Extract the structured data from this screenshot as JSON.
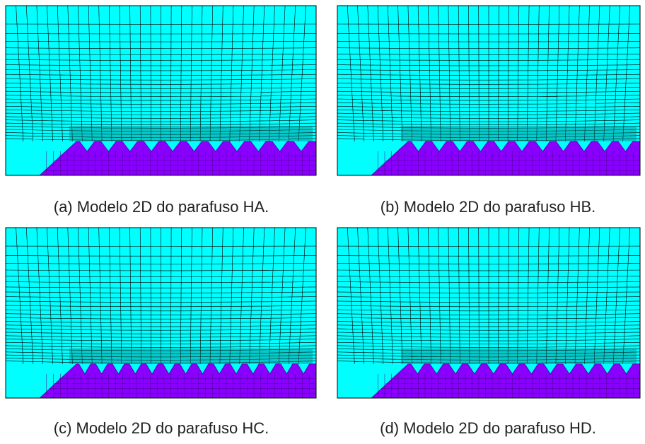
{
  "figures": [
    {
      "caption": "(a) Modelo 2D do parafuso HA."
    },
    {
      "caption": "(b) Modelo 2D do parafuso HB."
    },
    {
      "caption": "(c) Modelo 2D do parafuso HC."
    },
    {
      "caption": "(d) Modelo 2D do parafuso HD."
    }
  ]
}
